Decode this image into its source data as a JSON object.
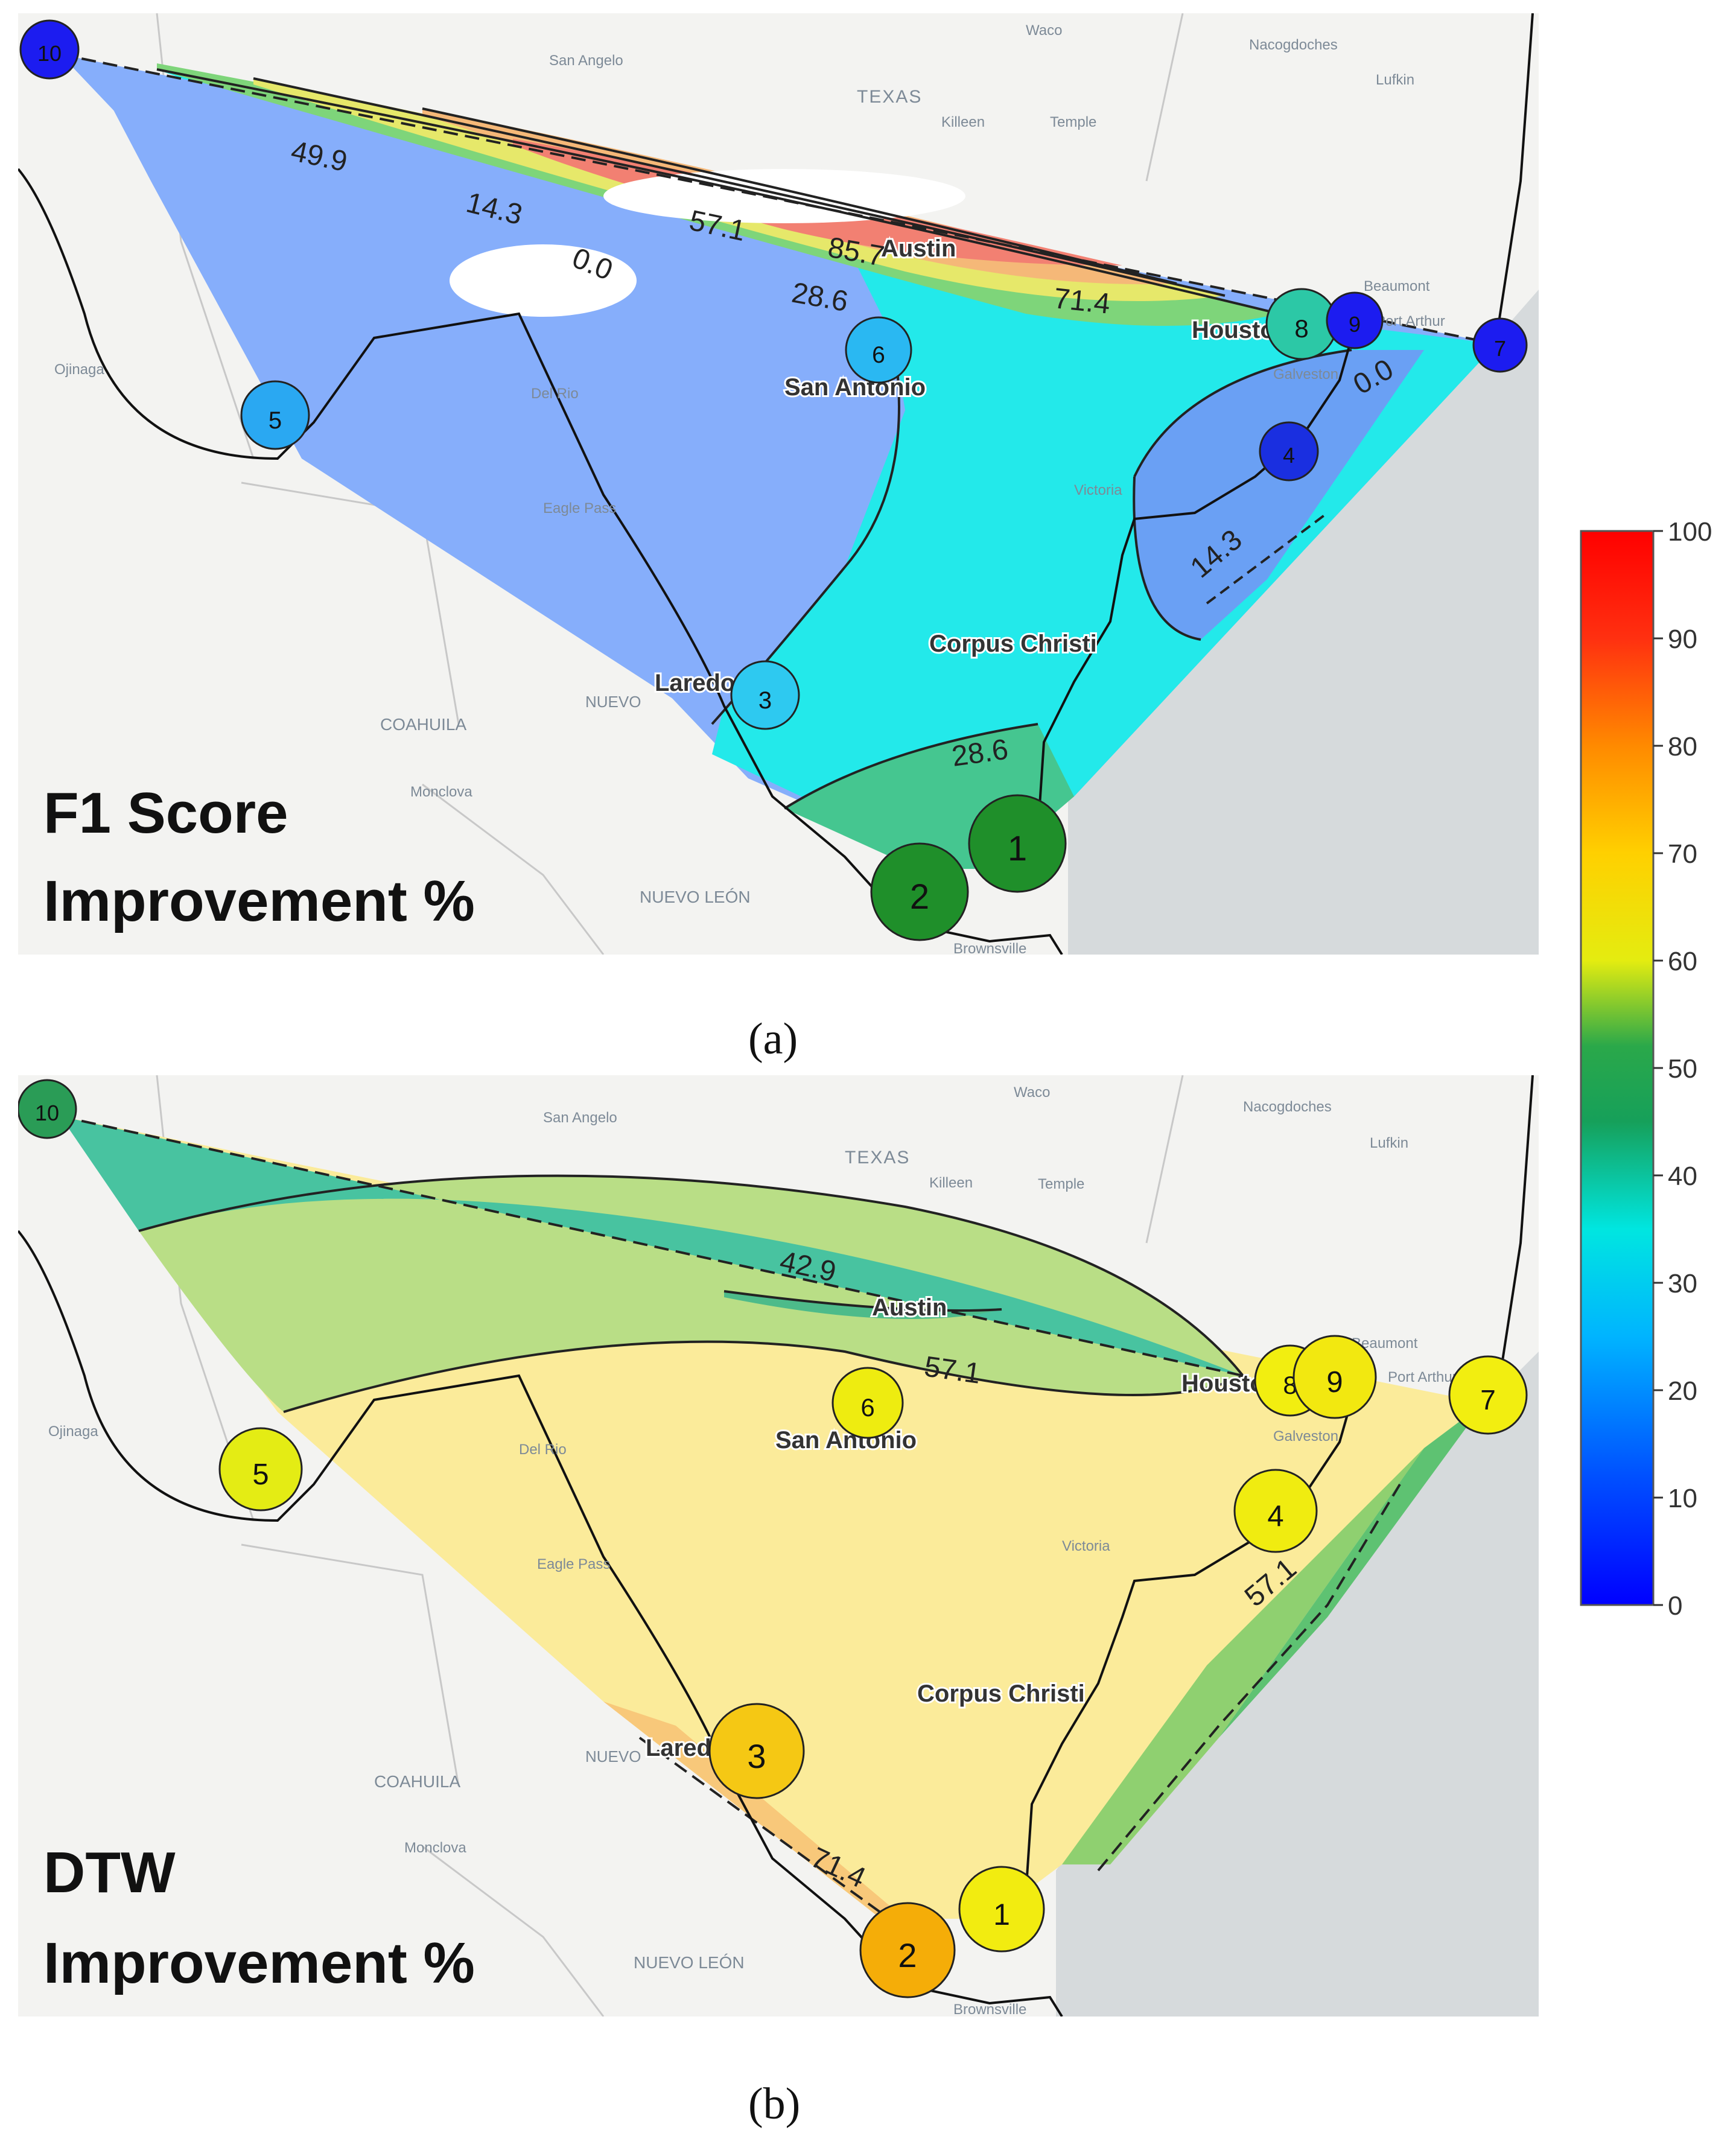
{
  "map_labels": {
    "san_angelo": "San Angelo",
    "waco": "Waco",
    "nacogdoches": "Nacogdoches",
    "texas": "TEXAS",
    "killeen": "Killeen",
    "temple": "Temple",
    "lufkin": "Lufkin",
    "beaumont": "Beaumont",
    "port_arthur": "Port Arthur",
    "galveston": "Galveston",
    "victoria": "Victoria",
    "ojinaga": "Ojinaga",
    "del_rio": "Del Rio",
    "eagle_pass": "Eagle Pass",
    "coahuila": "COAHUILA",
    "monclova": "Monclova",
    "nuevo_leon": "NUEVO LEÓN",
    "brownsville": "Brownsville",
    "nuevo": "NUEVO",
    "austin": "Austin",
    "houston": "Houston",
    "san_antonio": "San Antonio",
    "corpus_christi": "Corpus Christi",
    "laredo": "Laredo"
  },
  "panel_a": {
    "caption": "(a)",
    "title_line1": "F1 Score",
    "title_line2": "Improvement %",
    "contour_labels": [
      "49.9",
      "14.3",
      "57.1",
      "85.7",
      "0.0",
      "28.6",
      "71.4",
      "0.0",
      "14.3",
      "28.6"
    ],
    "stations": [
      {
        "id": "1",
        "value": 40,
        "color": "#1f8f2a"
      },
      {
        "id": "2",
        "value": 40,
        "color": "#1f8f2a"
      },
      {
        "id": "3",
        "value": 19,
        "color": "#2ec9f0"
      },
      {
        "id": "4",
        "value": 3,
        "color": "#1a2fe0"
      },
      {
        "id": "5",
        "value": 16,
        "color": "#2aa8f2"
      },
      {
        "id": "6",
        "value": 17,
        "color": "#2ab8f2"
      },
      {
        "id": "7",
        "value": 2,
        "color": "#1c1cf0"
      },
      {
        "id": "8",
        "value": 30,
        "color": "#2cc8a6"
      },
      {
        "id": "9",
        "value": 2,
        "color": "#1c1cf0"
      },
      {
        "id": "10",
        "value": 2,
        "color": "#1c1cf0"
      }
    ]
  },
  "panel_b": {
    "caption": "(b)",
    "title_line1": "DTW",
    "title_line2": "Improvement %",
    "contour_labels": [
      "42.9",
      "57.1",
      "57.1",
      "71.4"
    ],
    "stations": [
      {
        "id": "1",
        "value": 62,
        "color": "#f2ec10"
      },
      {
        "id": "2",
        "value": 76,
        "color": "#f5ad08"
      },
      {
        "id": "3",
        "value": 68,
        "color": "#f5c814"
      },
      {
        "id": "4",
        "value": 62,
        "color": "#f0ec10"
      },
      {
        "id": "5",
        "value": 58,
        "color": "#e4ec14"
      },
      {
        "id": "6",
        "value": 60,
        "color": "#eeec10"
      },
      {
        "id": "7",
        "value": 62,
        "color": "#f2ee10"
      },
      {
        "id": "8",
        "value": 62,
        "color": "#f2ee10"
      },
      {
        "id": "9",
        "value": 63,
        "color": "#f2e810"
      },
      {
        "id": "10",
        "value": 38,
        "color": "#2a9c56"
      }
    ]
  },
  "colorbar": {
    "ticks": [
      "100",
      "90",
      "80",
      "70",
      "60",
      "50",
      "40",
      "30",
      "20",
      "10",
      "0"
    ],
    "range": [
      0,
      100
    ],
    "colormap": "jet"
  }
}
